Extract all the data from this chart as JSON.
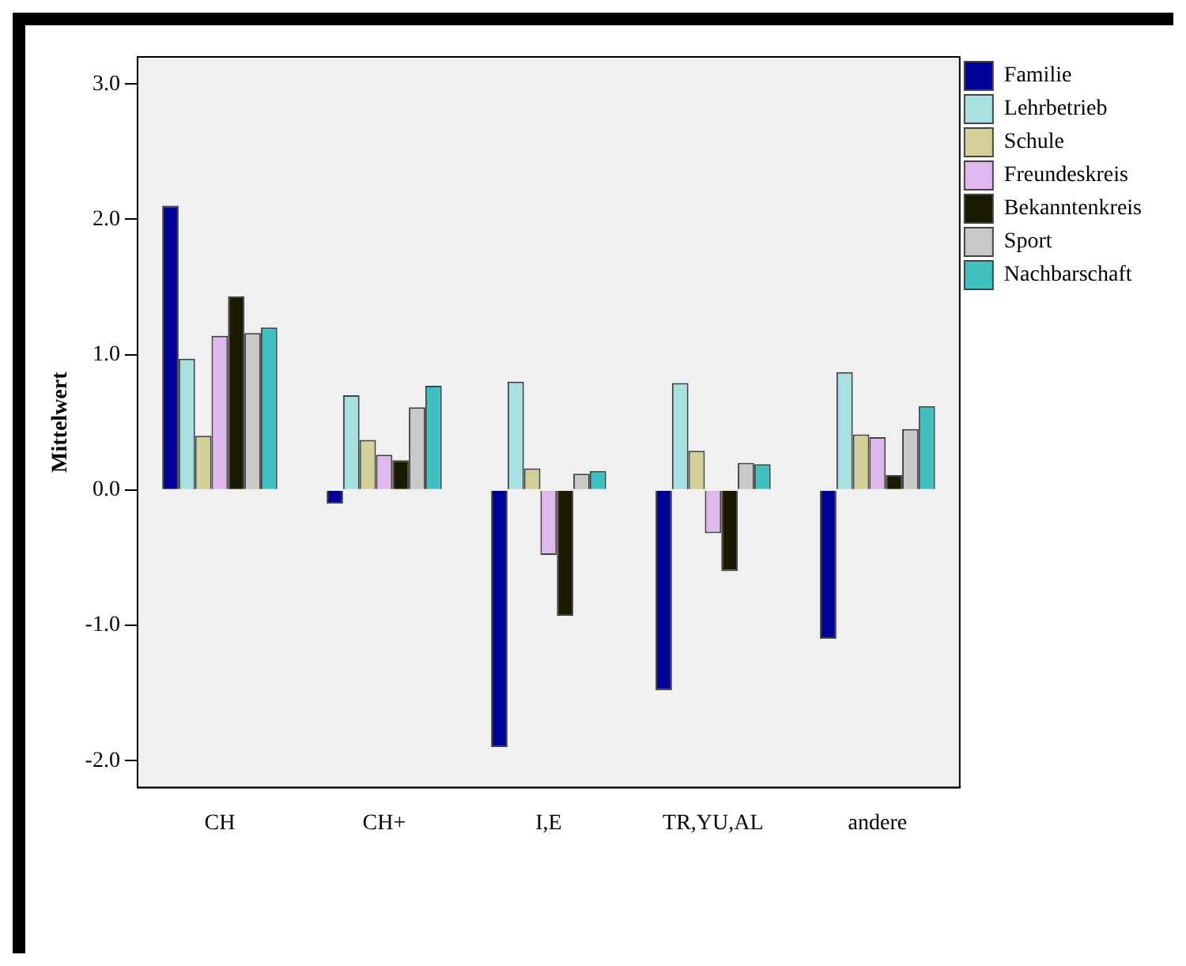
{
  "chart_data": {
    "type": "bar",
    "ylabel": "Mittelwert",
    "categories": [
      "CH",
      "CH+",
      "I,E",
      "TR,YU,AL",
      "andere"
    ],
    "series": [
      {
        "name": "Familie",
        "color": "#000099",
        "values": [
          2.1,
          -0.1,
          -1.9,
          -1.48,
          -1.1
        ]
      },
      {
        "name": "Lehrbetrieb",
        "color": "#a8e0e0",
        "values": [
          0.97,
          0.7,
          0.8,
          0.79,
          0.87
        ]
      },
      {
        "name": "Schule",
        "color": "#d4cf98",
        "values": [
          0.4,
          0.37,
          0.16,
          0.29,
          0.41
        ]
      },
      {
        "name": "Freundeskreis",
        "color": "#e0b8f0",
        "values": [
          1.14,
          0.26,
          -0.48,
          -0.32,
          0.39
        ]
      },
      {
        "name": "Bekanntenkreis",
        "color": "#1a1a00",
        "values": [
          1.43,
          0.22,
          -0.93,
          -0.6,
          0.11
        ]
      },
      {
        "name": "Sport",
        "color": "#c8c8c8",
        "values": [
          1.16,
          0.61,
          0.12,
          0.2,
          0.45
        ]
      },
      {
        "name": "Nachbarschaft",
        "color": "#40c0c0",
        "values": [
          1.2,
          0.77,
          0.14,
          0.19,
          0.62
        ]
      }
    ],
    "ylim": [
      -2.2,
      3.2
    ],
    "yticks": [
      {
        "value": -2,
        "label": "-2.0"
      },
      {
        "value": -1,
        "label": "-1.0"
      },
      {
        "value": 0,
        "label": "0.0"
      },
      {
        "value": 1,
        "label": "1.0"
      },
      {
        "value": 2,
        "label": "2.0"
      },
      {
        "value": 3,
        "label": "3.0"
      }
    ],
    "grid": false,
    "legend": "top right"
  }
}
